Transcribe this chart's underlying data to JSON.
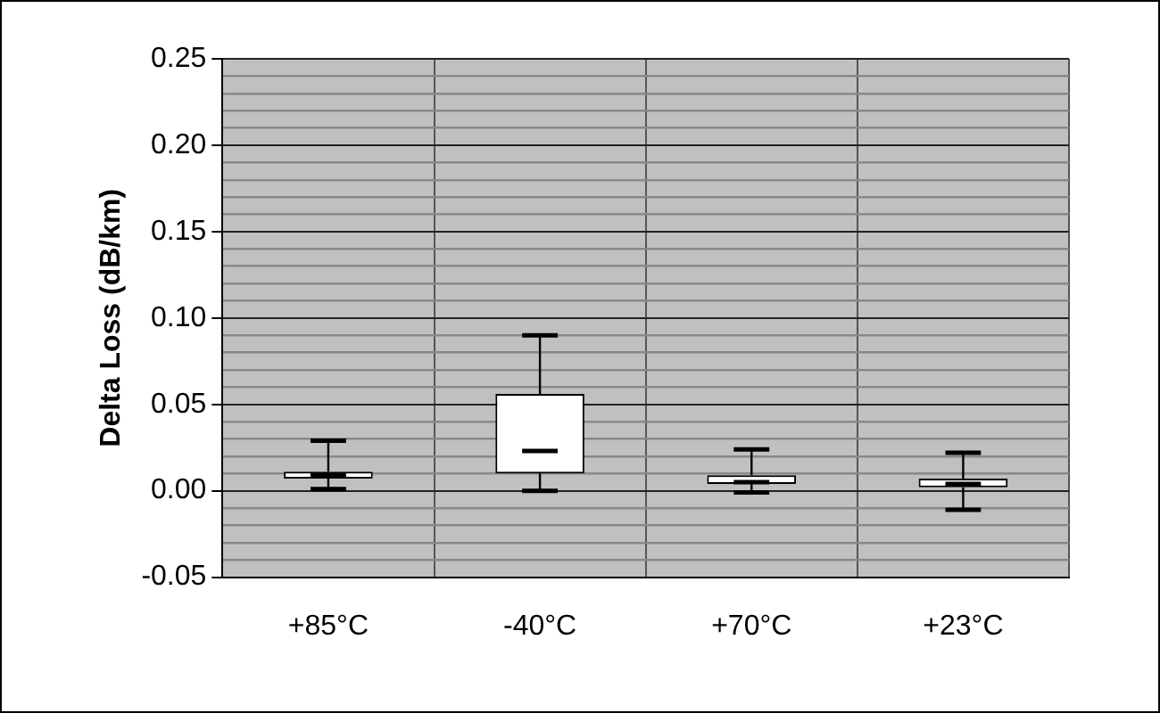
{
  "chart_data": {
    "type": "box",
    "ylabel": "Delta Loss (dB/km)",
    "categories": [
      "+85°C",
      "-40°C",
      "+70°C",
      "+23°C"
    ],
    "boxes": [
      {
        "low": 0.001,
        "q1": 0.007,
        "median": 0.009,
        "q3": 0.011,
        "high": 0.029
      },
      {
        "low": 0.0,
        "q1": 0.01,
        "median": 0.023,
        "q3": 0.056,
        "high": 0.09
      },
      {
        "low": -0.001,
        "q1": 0.004,
        "median": 0.005,
        "q3": 0.009,
        "high": 0.024
      },
      {
        "low": -0.011,
        "q1": 0.002,
        "median": 0.004,
        "q3": 0.007,
        "high": 0.022
      }
    ],
    "ylim": [
      -0.05,
      0.25
    ],
    "yticks": [
      {
        "value": -0.05,
        "label": "-0.05"
      },
      {
        "value": -0.04,
        "label": null
      },
      {
        "value": -0.03,
        "label": null
      },
      {
        "value": -0.02,
        "label": null
      },
      {
        "value": -0.01,
        "label": null
      },
      {
        "value": 0,
        "label": "0.00"
      },
      {
        "value": 0.01,
        "label": null
      },
      {
        "value": 0.02,
        "label": null
      },
      {
        "value": 0.03,
        "label": null
      },
      {
        "value": 0.04,
        "label": null
      },
      {
        "value": 0.05,
        "label": "0.05"
      },
      {
        "value": 0.06,
        "label": null
      },
      {
        "value": 0.07,
        "label": null
      },
      {
        "value": 0.08,
        "label": null
      },
      {
        "value": 0.09,
        "label": null
      },
      {
        "value": 0.1,
        "label": "0.10"
      },
      {
        "value": 0.11,
        "label": null
      },
      {
        "value": 0.12,
        "label": null
      },
      {
        "value": 0.13,
        "label": null
      },
      {
        "value": 0.14,
        "label": null
      },
      {
        "value": 0.15,
        "label": "0.15"
      },
      {
        "value": 0.16,
        "label": null
      },
      {
        "value": 0.17,
        "label": null
      },
      {
        "value": 0.18,
        "label": null
      },
      {
        "value": 0.19,
        "label": null
      },
      {
        "value": 0.2,
        "label": "0.20"
      },
      {
        "value": 0.21,
        "label": null
      },
      {
        "value": 0.22,
        "label": null
      },
      {
        "value": 0.23,
        "label": null
      },
      {
        "value": 0.24,
        "label": null
      },
      {
        "value": 0.25,
        "label": "0.25"
      }
    ],
    "grid": true
  }
}
